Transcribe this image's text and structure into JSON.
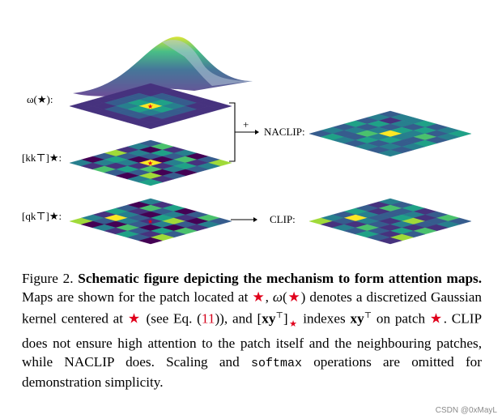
{
  "labels": {
    "omega": "ω(★):",
    "kk": "[kk⊤]★:",
    "qk": "[qk⊤]★:",
    "plus": "+",
    "naclip": "NACLIP:",
    "clip": "CLIP:"
  },
  "caption": {
    "prefix": "Figure 2.",
    "title": "Schematic figure depicting the mechanism to form attention maps.",
    "p1": "Maps are shown for the patch located at",
    "p2": "denotes a discretized Gaussian kernel centered at",
    "p3": "(see Eq. (",
    "ref": "11",
    "p4": ")), and",
    "p5": "indexes",
    "p6": "on patch",
    "p7": ". CLIP does not ensure high attention to the patch itself and the neighbouring patches, while NACLIP does. Scaling and",
    "softmax": "softmax",
    "p8": "operations are omitted for demonstration simplicity."
  },
  "watermark": "CSDN @0xMayL",
  "colors": {
    "palette": [
      "#440154",
      "#46327e",
      "#365c8d",
      "#277f8e",
      "#1fa187",
      "#4ac16d",
      "#a0da39",
      "#fde725"
    ],
    "star": "#e0001b"
  },
  "maps": {
    "omega": [
      [
        1,
        1,
        1,
        1,
        1,
        1,
        1
      ],
      [
        1,
        1,
        2,
        2,
        2,
        1,
        1
      ],
      [
        1,
        2,
        3,
        4,
        3,
        2,
        1
      ],
      [
        1,
        2,
        4,
        7,
        4,
        2,
        1
      ],
      [
        1,
        2,
        3,
        4,
        3,
        2,
        1
      ],
      [
        1,
        1,
        2,
        2,
        2,
        1,
        1
      ],
      [
        1,
        1,
        1,
        1,
        1,
        1,
        1
      ]
    ],
    "kk": [
      [
        2,
        5,
        1,
        3,
        0,
        2,
        6
      ],
      [
        3,
        0,
        4,
        2,
        5,
        1,
        3
      ],
      [
        1,
        3,
        2,
        0,
        3,
        4,
        2
      ],
      [
        6,
        2,
        0,
        7,
        1,
        3,
        0
      ],
      [
        2,
        4,
        3,
        1,
        5,
        0,
        2
      ],
      [
        0,
        3,
        1,
        4,
        2,
        6,
        1
      ],
      [
        3,
        1,
        5,
        2,
        0,
        3,
        4
      ]
    ],
    "qk": [
      [
        3,
        1,
        4,
        0,
        2,
        5,
        2
      ],
      [
        0,
        5,
        2,
        3,
        1,
        0,
        3
      ],
      [
        2,
        1,
        0,
        4,
        6,
        2,
        1
      ],
      [
        4,
        3,
        2,
        1,
        3,
        0,
        5
      ],
      [
        1,
        7,
        3,
        2,
        0,
        4,
        2
      ],
      [
        3,
        2,
        0,
        5,
        2,
        1,
        6
      ],
      [
        6,
        0,
        3,
        1,
        4,
        2,
        0
      ]
    ],
    "naclip": [
      [
        2,
        3,
        3,
        4,
        2,
        3,
        4
      ],
      [
        3,
        1,
        3,
        2,
        4,
        2,
        3
      ],
      [
        2,
        4,
        2,
        4,
        3,
        5,
        2
      ],
      [
        4,
        2,
        3,
        7,
        3,
        2,
        4
      ],
      [
        2,
        3,
        5,
        3,
        4,
        2,
        3
      ],
      [
        3,
        2,
        2,
        4,
        2,
        3,
        2
      ],
      [
        2,
        4,
        3,
        2,
        3,
        2,
        3
      ]
    ],
    "clip": [
      [
        3,
        2,
        4,
        1,
        2,
        5,
        2
      ],
      [
        1,
        5,
        2,
        3,
        1,
        2,
        3
      ],
      [
        2,
        1,
        2,
        4,
        6,
        2,
        1
      ],
      [
        4,
        3,
        2,
        1,
        3,
        1,
        5
      ],
      [
        2,
        7,
        3,
        2,
        1,
        4,
        2
      ],
      [
        3,
        2,
        1,
        5,
        2,
        1,
        6
      ],
      [
        6,
        1,
        3,
        2,
        4,
        2,
        1
      ]
    ]
  }
}
